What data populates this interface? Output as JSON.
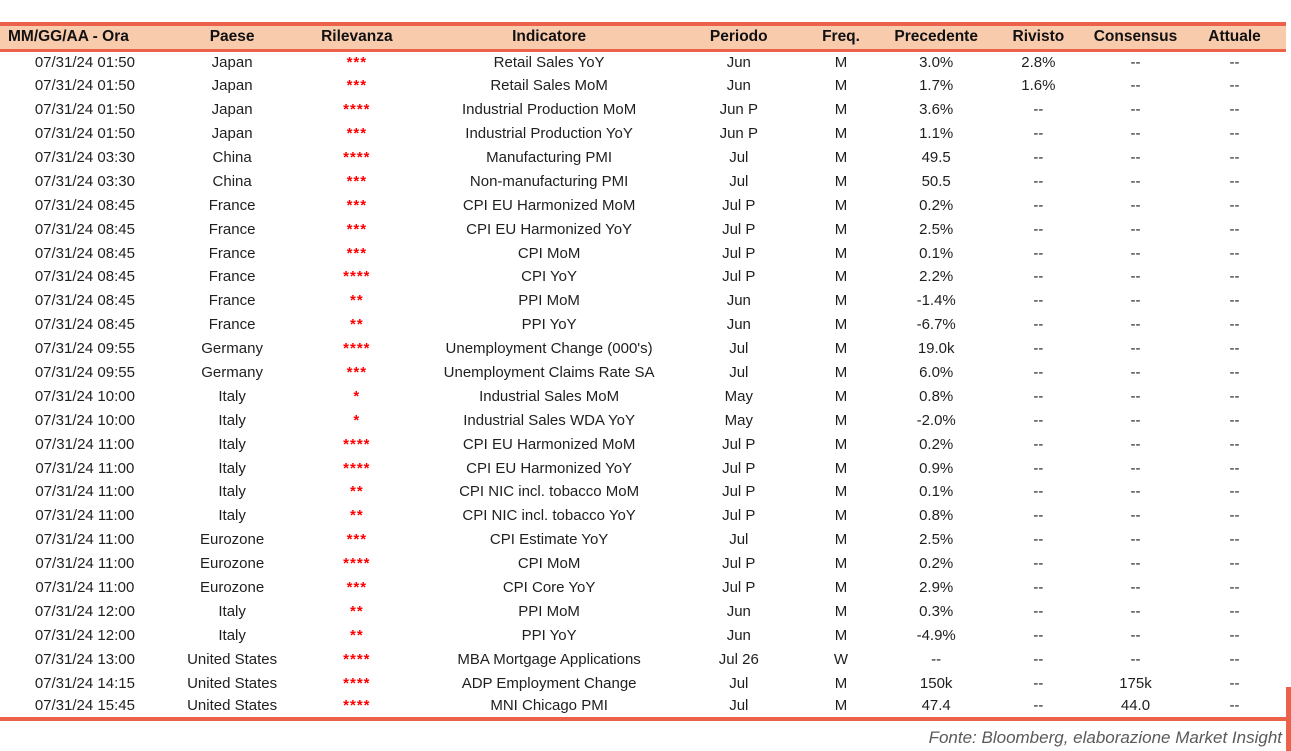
{
  "colors": {
    "accent": "#ec614a",
    "header_bg": "#f8cbad",
    "star": "#ff0000",
    "text": "#1f1f1f",
    "footer_text": "#5a5a5a"
  },
  "header": {
    "columns": [
      "MM/GG/AA - Ora",
      "Paese",
      "Rilevanza",
      "Indicatore",
      "Periodo",
      "Freq.",
      "Precedente",
      "Rivisto",
      "Consensus",
      "Attuale"
    ]
  },
  "rows": [
    {
      "datetime": "07/31/24 01:50",
      "country": "Japan",
      "relevance": "***",
      "indicator": "Retail Sales YoY",
      "period": "Jun",
      "freq": "M",
      "previous": "3.0%",
      "revised": "2.8%",
      "consensus": "--",
      "actual": "--"
    },
    {
      "datetime": "07/31/24 01:50",
      "country": "Japan",
      "relevance": "***",
      "indicator": "Retail Sales MoM",
      "period": "Jun",
      "freq": "M",
      "previous": "1.7%",
      "revised": "1.6%",
      "consensus": "--",
      "actual": "--"
    },
    {
      "datetime": "07/31/24 01:50",
      "country": "Japan",
      "relevance": "****",
      "indicator": "Industrial Production MoM",
      "period": "Jun P",
      "freq": "M",
      "previous": "3.6%",
      "revised": "--",
      "consensus": "--",
      "actual": "--"
    },
    {
      "datetime": "07/31/24 01:50",
      "country": "Japan",
      "relevance": "***",
      "indicator": "Industrial Production YoY",
      "period": "Jun P",
      "freq": "M",
      "previous": "1.1%",
      "revised": "--",
      "consensus": "--",
      "actual": "--"
    },
    {
      "datetime": "07/31/24 03:30",
      "country": "China",
      "relevance": "****",
      "indicator": "Manufacturing PMI",
      "period": "Jul",
      "freq": "M",
      "previous": "49.5",
      "revised": "--",
      "consensus": "--",
      "actual": "--"
    },
    {
      "datetime": "07/31/24 03:30",
      "country": "China",
      "relevance": "***",
      "indicator": "Non-manufacturing PMI",
      "period": "Jul",
      "freq": "M",
      "previous": "50.5",
      "revised": "--",
      "consensus": "--",
      "actual": "--"
    },
    {
      "datetime": "07/31/24 08:45",
      "country": "France",
      "relevance": "***",
      "indicator": "CPI EU Harmonized MoM",
      "period": "Jul P",
      "freq": "M",
      "previous": "0.2%",
      "revised": "--",
      "consensus": "--",
      "actual": "--"
    },
    {
      "datetime": "07/31/24 08:45",
      "country": "France",
      "relevance": "***",
      "indicator": "CPI EU Harmonized YoY",
      "period": "Jul P",
      "freq": "M",
      "previous": "2.5%",
      "revised": "--",
      "consensus": "--",
      "actual": "--"
    },
    {
      "datetime": "07/31/24 08:45",
      "country": "France",
      "relevance": "***",
      "indicator": "CPI MoM",
      "period": "Jul P",
      "freq": "M",
      "previous": "0.1%",
      "revised": "--",
      "consensus": "--",
      "actual": "--"
    },
    {
      "datetime": "07/31/24 08:45",
      "country": "France",
      "relevance": "****",
      "indicator": "CPI YoY",
      "period": "Jul P",
      "freq": "M",
      "previous": "2.2%",
      "revised": "--",
      "consensus": "--",
      "actual": "--"
    },
    {
      "datetime": "07/31/24 08:45",
      "country": "France",
      "relevance": "**",
      "indicator": "PPI MoM",
      "period": "Jun",
      "freq": "M",
      "previous": "-1.4%",
      "revised": "--",
      "consensus": "--",
      "actual": "--"
    },
    {
      "datetime": "07/31/24 08:45",
      "country": "France",
      "relevance": "**",
      "indicator": "PPI YoY",
      "period": "Jun",
      "freq": "M",
      "previous": "-6.7%",
      "revised": "--",
      "consensus": "--",
      "actual": "--"
    },
    {
      "datetime": "07/31/24 09:55",
      "country": "Germany",
      "relevance": "****",
      "indicator": "Unemployment Change (000's)",
      "period": "Jul",
      "freq": "M",
      "previous": "19.0k",
      "revised": "--",
      "consensus": "--",
      "actual": "--"
    },
    {
      "datetime": "07/31/24 09:55",
      "country": "Germany",
      "relevance": "***",
      "indicator": "Unemployment Claims Rate SA",
      "period": "Jul",
      "freq": "M",
      "previous": "6.0%",
      "revised": "--",
      "consensus": "--",
      "actual": "--"
    },
    {
      "datetime": "07/31/24 10:00",
      "country": "Italy",
      "relevance": "*",
      "indicator": "Industrial Sales MoM",
      "period": "May",
      "freq": "M",
      "previous": "0.8%",
      "revised": "--",
      "consensus": "--",
      "actual": "--"
    },
    {
      "datetime": "07/31/24 10:00",
      "country": "Italy",
      "relevance": "*",
      "indicator": "Industrial Sales WDA YoY",
      "period": "May",
      "freq": "M",
      "previous": "-2.0%",
      "revised": "--",
      "consensus": "--",
      "actual": "--"
    },
    {
      "datetime": "07/31/24 11:00",
      "country": "Italy",
      "relevance": "****",
      "indicator": "CPI EU Harmonized MoM",
      "period": "Jul P",
      "freq": "M",
      "previous": "0.2%",
      "revised": "--",
      "consensus": "--",
      "actual": "--"
    },
    {
      "datetime": "07/31/24 11:00",
      "country": "Italy",
      "relevance": "****",
      "indicator": "CPI EU Harmonized YoY",
      "period": "Jul P",
      "freq": "M",
      "previous": "0.9%",
      "revised": "--",
      "consensus": "--",
      "actual": "--"
    },
    {
      "datetime": "07/31/24 11:00",
      "country": "Italy",
      "relevance": "**",
      "indicator": "CPI NIC incl. tobacco MoM",
      "period": "Jul P",
      "freq": "M",
      "previous": "0.1%",
      "revised": "--",
      "consensus": "--",
      "actual": "--"
    },
    {
      "datetime": "07/31/24 11:00",
      "country": "Italy",
      "relevance": "**",
      "indicator": "CPI NIC incl. tobacco YoY",
      "period": "Jul P",
      "freq": "M",
      "previous": "0.8%",
      "revised": "--",
      "consensus": "--",
      "actual": "--"
    },
    {
      "datetime": "07/31/24 11:00",
      "country": "Eurozone",
      "relevance": "***",
      "indicator": "CPI Estimate YoY",
      "period": "Jul",
      "freq": "M",
      "previous": "2.5%",
      "revised": "--",
      "consensus": "--",
      "actual": "--"
    },
    {
      "datetime": "07/31/24 11:00",
      "country": "Eurozone",
      "relevance": "****",
      "indicator": "CPI MoM",
      "period": "Jul P",
      "freq": "M",
      "previous": "0.2%",
      "revised": "--",
      "consensus": "--",
      "actual": "--"
    },
    {
      "datetime": "07/31/24 11:00",
      "country": "Eurozone",
      "relevance": "***",
      "indicator": "CPI Core YoY",
      "period": "Jul P",
      "freq": "M",
      "previous": "2.9%",
      "revised": "--",
      "consensus": "--",
      "actual": "--"
    },
    {
      "datetime": "07/31/24 12:00",
      "country": "Italy",
      "relevance": "**",
      "indicator": "PPI MoM",
      "period": "Jun",
      "freq": "M",
      "previous": "0.3%",
      "revised": "--",
      "consensus": "--",
      "actual": "--"
    },
    {
      "datetime": "07/31/24 12:00",
      "country": "Italy",
      "relevance": "**",
      "indicator": "PPI YoY",
      "period": "Jun",
      "freq": "M",
      "previous": "-4.9%",
      "revised": "--",
      "consensus": "--",
      "actual": "--"
    },
    {
      "datetime": "07/31/24 13:00",
      "country": "United States",
      "relevance": "****",
      "indicator": "MBA Mortgage Applications",
      "period": "Jul 26",
      "freq": "W",
      "previous": "--",
      "revised": "--",
      "consensus": "--",
      "actual": "--"
    },
    {
      "datetime": "07/31/24 14:15",
      "country": "United States",
      "relevance": "****",
      "indicator": "ADP Employment Change",
      "period": "Jul",
      "freq": "M",
      "previous": "150k",
      "revised": "--",
      "consensus": "175k",
      "actual": "--"
    },
    {
      "datetime": "07/31/24 15:45",
      "country": "United States",
      "relevance": "****",
      "indicator": "MNI Chicago PMI",
      "period": "Jul",
      "freq": "M",
      "previous": "47.4",
      "revised": "--",
      "consensus": "44.0",
      "actual": "--"
    }
  ],
  "footer": {
    "source": "Fonte: Bloomberg, elaborazione Market Insight"
  }
}
